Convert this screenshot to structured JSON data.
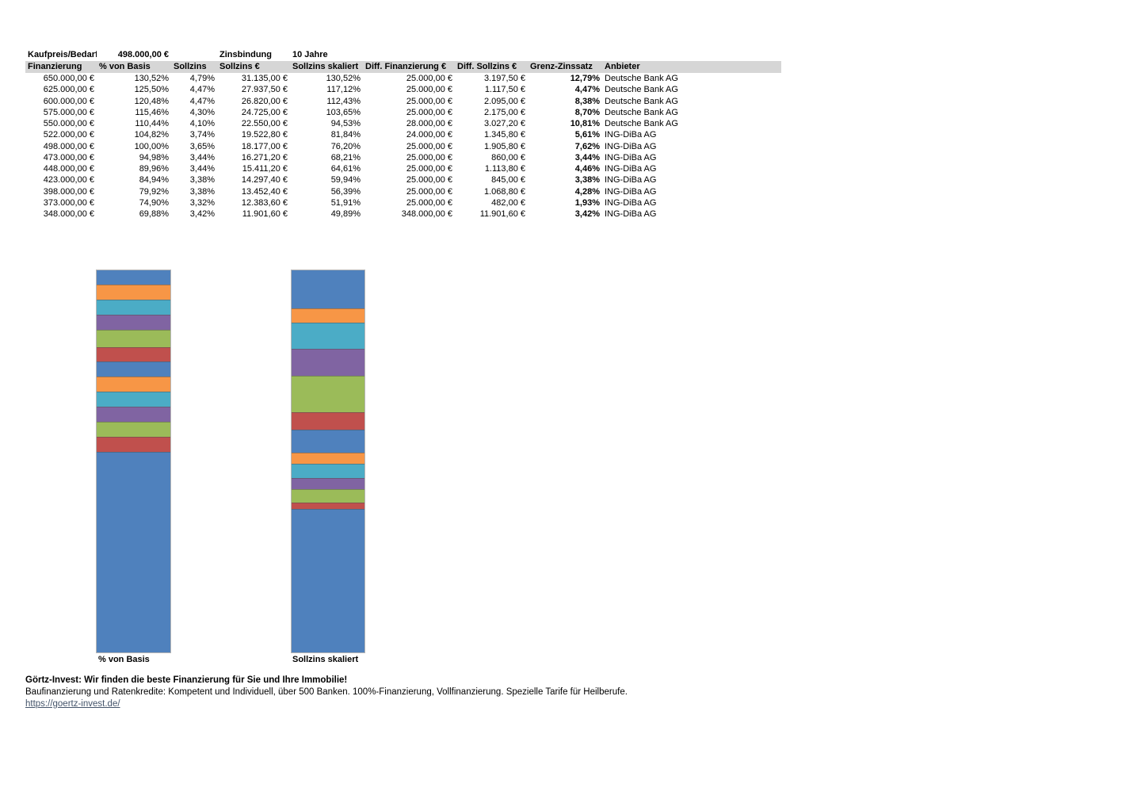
{
  "info_row": {
    "label": "Kaufpreis/Bedarf",
    "value": "498.000,00 €",
    "binding_label": "Zinsbindung",
    "binding_value": "10 Jahre"
  },
  "table": {
    "header_bg": "#d6d6d6",
    "columns": [
      "Finanzierung",
      "% von Basis",
      "Sollzins",
      "Sollzins €",
      "Sollzins skaliert",
      "Diff. Finanzierung €",
      "Diff. Sollzins €",
      "Grenz-Zinssatz",
      "Anbieter"
    ],
    "rows": [
      [
        "650.000,00 €",
        "130,52%",
        "4,79%",
        "31.135,00 €",
        "130,52%",
        "25.000,00 €",
        "3.197,50 €",
        "12,79%",
        "Deutsche Bank AG"
      ],
      [
        "625.000,00 €",
        "125,50%",
        "4,47%",
        "27.937,50 €",
        "117,12%",
        "25.000,00 €",
        "1.117,50 €",
        "4,47%",
        "Deutsche Bank AG"
      ],
      [
        "600.000,00 €",
        "120,48%",
        "4,47%",
        "26.820,00 €",
        "112,43%",
        "25.000,00 €",
        "2.095,00 €",
        "8,38%",
        "Deutsche Bank AG"
      ],
      [
        "575.000,00 €",
        "115,46%",
        "4,30%",
        "24.725,00 €",
        "103,65%",
        "25.000,00 €",
        "2.175,00 €",
        "8,70%",
        "Deutsche Bank AG"
      ],
      [
        "550.000,00 €",
        "110,44%",
        "4,10%",
        "22.550,00 €",
        "94,53%",
        "28.000,00 €",
        "3.027,20 €",
        "10,81%",
        "Deutsche Bank AG"
      ],
      [
        "522.000,00 €",
        "104,82%",
        "3,74%",
        "19.522,80 €",
        "81,84%",
        "24.000,00 €",
        "1.345,80 €",
        "5,61%",
        "ING-DiBa AG"
      ],
      [
        "498.000,00 €",
        "100,00%",
        "3,65%",
        "18.177,00 €",
        "76,20%",
        "25.000,00 €",
        "1.905,80 €",
        "7,62%",
        "ING-DiBa AG"
      ],
      [
        "473.000,00 €",
        "94,98%",
        "3,44%",
        "16.271,20 €",
        "68,21%",
        "25.000,00 €",
        "860,00 €",
        "3,44%",
        "ING-DiBa AG"
      ],
      [
        "448.000,00 €",
        "89,96%",
        "3,44%",
        "15.411,20 €",
        "64,61%",
        "25.000,00 €",
        "1.113,80 €",
        "4,46%",
        "ING-DiBa AG"
      ],
      [
        "423.000,00 €",
        "84,94%",
        "3,38%",
        "14.297,40 €",
        "59,94%",
        "25.000,00 €",
        "845,00 €",
        "3,38%",
        "ING-DiBa AG"
      ],
      [
        "398.000,00 €",
        "79,92%",
        "3,38%",
        "13.452,40 €",
        "56,39%",
        "25.000,00 €",
        "1.068,80 €",
        "4,28%",
        "ING-DiBa AG"
      ],
      [
        "373.000,00 €",
        "74,90%",
        "3,32%",
        "12.383,60 €",
        "51,91%",
        "25.000,00 €",
        "482,00 €",
        "1,93%",
        "ING-DiBa AG"
      ],
      [
        "348.000,00 €",
        "69,88%",
        "3,42%",
        "11.901,60 €",
        "49,89%",
        "348.000,00 €",
        "11.901,60 €",
        "3,42%",
        "ING-DiBa AG"
      ]
    ]
  },
  "chart_data": [
    {
      "type": "bar",
      "subtype": "stacked-single-column",
      "title": "% von Basis",
      "xlabel": "% von Basis",
      "ylabel": "",
      "total": 130.52,
      "ylim": [
        0,
        130.52
      ],
      "grid": false,
      "legend": "none",
      "note": "Stacked differences of the '% von Basis' column; base segment 69,88% at bottom, increments of ~5,02% stacked above, top of stack = 130,52%",
      "segments_top_to_bottom": [
        {
          "value": 5.02,
          "color": "#4F81BD"
        },
        {
          "value": 5.02,
          "color": "#F79646"
        },
        {
          "value": 5.02,
          "color": "#4BACC6"
        },
        {
          "value": 5.02,
          "color": "#8064A2"
        },
        {
          "value": 5.62,
          "color": "#9BBB59"
        },
        {
          "value": 4.82,
          "color": "#C0504D"
        },
        {
          "value": 5.02,
          "color": "#4F81BD"
        },
        {
          "value": 5.02,
          "color": "#F79646"
        },
        {
          "value": 5.02,
          "color": "#4BACC6"
        },
        {
          "value": 5.02,
          "color": "#8064A2"
        },
        {
          "value": 5.02,
          "color": "#9BBB59"
        },
        {
          "value": 5.02,
          "color": "#C0504D"
        },
        {
          "value": 69.88,
          "color": "#4F81BD"
        }
      ]
    },
    {
      "type": "bar",
      "subtype": "stacked-single-column",
      "title": "Sollzins skaliert",
      "xlabel": "Sollzins skaliert",
      "ylabel": "",
      "total": 130.52,
      "ylim": [
        0,
        130.52
      ],
      "grid": false,
      "legend": "none",
      "note": "Stacked differences of the 'Sollzins skaliert' column; base segment 49,89% at bottom, top of stack = 130,52%",
      "segments_top_to_bottom": [
        {
          "value": 13.4,
          "color": "#4F81BD"
        },
        {
          "value": 4.69,
          "color": "#F79646"
        },
        {
          "value": 8.78,
          "color": "#4BACC6"
        },
        {
          "value": 9.12,
          "color": "#8064A2"
        },
        {
          "value": 12.69,
          "color": "#9BBB59"
        },
        {
          "value": 5.64,
          "color": "#C0504D"
        },
        {
          "value": 7.99,
          "color": "#4F81BD"
        },
        {
          "value": 3.6,
          "color": "#F79646"
        },
        {
          "value": 4.67,
          "color": "#4BACC6"
        },
        {
          "value": 3.55,
          "color": "#8064A2"
        },
        {
          "value": 4.48,
          "color": "#9BBB59"
        },
        {
          "value": 2.02,
          "color": "#C0504D"
        },
        {
          "value": 49.89,
          "color": "#4F81BD"
        }
      ]
    }
  ],
  "footer": {
    "headline": "Görtz-Invest: Wir finden die beste Finanzierung für Sie und Ihre Immobilie!",
    "description": "Baufinanzierung und Ratenkredite: Kompetent und Individuell, über 500 Banken. 100%-Finanzierung, Vollfinanzierung. Spezielle Tarife für Heilberufe.",
    "link": "https://goertz-invest.de/",
    "link_color": "#44546A"
  }
}
